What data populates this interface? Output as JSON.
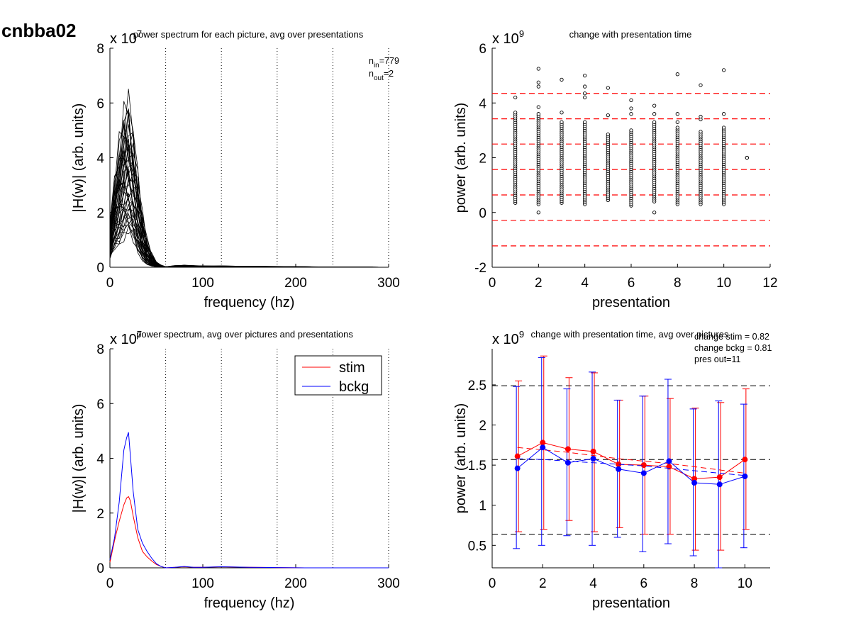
{
  "figure_label": "cnbba02",
  "chart_data": [
    {
      "id": "p1",
      "type": "line",
      "title": "power spectrum for each picture, avg over presentations",
      "xlabel": "frequency (hz)",
      "ylabel": "|H(w)| (arb. units)",
      "xlim": [
        0,
        300
      ],
      "ylim": [
        0,
        8
      ],
      "y_exponent": "x 10^7",
      "exp_base": "x 10",
      "exp_power": "7",
      "xticks": [
        "0",
        "100",
        "200",
        "300"
      ],
      "yticks": [
        "0",
        "2",
        "4",
        "6",
        "8"
      ],
      "vlines_dotted": [
        60,
        120,
        180,
        240,
        300
      ],
      "annotation": {
        "n_in": "n_in=779",
        "n_out": "n_out=2",
        "n_in_label": "n",
        "n_in_sub": "in",
        "n_in_val": "=779",
        "n_out_label": "n",
        "n_out_sub": "out",
        "n_out_val": "=2"
      },
      "x": [
        0,
        5,
        10,
        15,
        20,
        25,
        30,
        35,
        40,
        45,
        50,
        55,
        60,
        70,
        80,
        90,
        100,
        120,
        150,
        180,
        210,
        240,
        270,
        300
      ],
      "series_envelope": {
        "name": "",
        "description": "many individual spectra; values summarized by min/max/mean",
        "min": [
          0.4,
          0.8,
          1.0,
          1.3,
          1.5,
          1.2,
          0.7,
          0.3,
          0.1,
          0.05,
          0.02,
          0.01,
          0.0,
          0.0,
          0.0,
          0.0,
          0.0,
          0.0,
          0.0,
          0.0,
          0.0,
          0.0,
          0.0,
          0.0
        ],
        "mean": [
          0.9,
          1.8,
          2.6,
          3.0,
          3.1,
          2.6,
          1.6,
          0.8,
          0.35,
          0.15,
          0.06,
          0.02,
          0.0,
          0.02,
          0.03,
          0.02,
          0.02,
          0.02,
          0.01,
          0.01,
          0.01,
          0.0,
          0.0,
          0.0
        ],
        "max": [
          1.6,
          3.2,
          4.6,
          5.8,
          6.0,
          5.0,
          3.5,
          2.0,
          1.0,
          0.5,
          0.2,
          0.08,
          0.02,
          0.06,
          0.08,
          0.06,
          0.05,
          0.05,
          0.04,
          0.03,
          0.02,
          0.01,
          0.01,
          0.0
        ]
      }
    },
    {
      "id": "p2",
      "type": "scatter",
      "title": "change with presentation time",
      "xlabel": "presentation",
      "ylabel": "power (arb. units)",
      "xlim": [
        0,
        12
      ],
      "ylim": [
        -2,
        6
      ],
      "y_exponent": "x 10^9",
      "exp_base": "x 10",
      "exp_power": "9",
      "xticks": [
        "0",
        "2",
        "4",
        "6",
        "8",
        "10",
        "12"
      ],
      "yticks": [
        "-2",
        "0",
        "2",
        "4",
        "6"
      ],
      "hlines_dashed_red": [
        4.35,
        3.42,
        2.5,
        1.57,
        0.64,
        -0.29,
        -1.22
      ],
      "points_by_presentation": [
        {
          "x": 1,
          "range": [
            0.35,
            3.65
          ],
          "outliers": [
            4.2
          ]
        },
        {
          "x": 2,
          "range": [
            0.3,
            3.6
          ],
          "outliers": [
            0.0,
            3.85,
            4.6,
            4.75,
            5.25
          ]
        },
        {
          "x": 3,
          "range": [
            0.35,
            3.3
          ],
          "outliers": [
            3.65,
            4.85
          ]
        },
        {
          "x": 4,
          "range": [
            0.3,
            3.3
          ],
          "outliers": [
            4.2,
            4.35,
            4.6,
            5.0
          ]
        },
        {
          "x": 5,
          "range": [
            0.45,
            2.85
          ],
          "outliers": [
            3.55,
            4.55
          ]
        },
        {
          "x": 6,
          "range": [
            0.25,
            3.0
          ],
          "outliers": [
            3.6,
            3.8,
            4.1
          ]
        },
        {
          "x": 7,
          "range": [
            0.4,
            3.3
          ],
          "outliers": [
            0.0,
            3.6,
            3.9
          ]
        },
        {
          "x": 8,
          "range": [
            0.3,
            3.1
          ],
          "outliers": [
            3.3,
            3.6,
            5.05
          ]
        },
        {
          "x": 9,
          "range": [
            0.3,
            2.95
          ],
          "outliers": [
            3.4,
            3.5,
            4.65
          ]
        },
        {
          "x": 10,
          "range": [
            0.3,
            3.1
          ],
          "outliers": [
            3.6,
            5.2
          ]
        },
        {
          "x": 11,
          "range": [
            2.0,
            2.0
          ],
          "outliers": []
        }
      ]
    },
    {
      "id": "p3",
      "type": "line",
      "title": "power spectrum, avg over pictures and presentations",
      "xlabel": "frequency (hz)",
      "ylabel": "|H(w)| (arb. units)",
      "xlim": [
        0,
        300
      ],
      "ylim": [
        0,
        8
      ],
      "y_exponent": "x 10^7",
      "exp_base": "x 10",
      "exp_power": "7",
      "xticks": [
        "0",
        "100",
        "200",
        "300"
      ],
      "yticks": [
        "0",
        "2",
        "4",
        "6",
        "8"
      ],
      "vlines_dotted": [
        60,
        120,
        180,
        240,
        300
      ],
      "legend": {
        "placement": "top-right",
        "entries": [
          {
            "label": "stim",
            "color": "#ff0000"
          },
          {
            "label": "bckg",
            "color": "#0000ff"
          }
        ]
      },
      "x": [
        0,
        5,
        10,
        15,
        18,
        20,
        22,
        25,
        30,
        35,
        40,
        45,
        50,
        55,
        60,
        70,
        80,
        90,
        100,
        120,
        150,
        180,
        210,
        240,
        270,
        300
      ],
      "series": [
        {
          "name": "stim",
          "color": "#ff0000",
          "values": [
            0.2,
            1.0,
            1.7,
            2.3,
            2.55,
            2.6,
            2.45,
            1.9,
            1.1,
            0.6,
            0.4,
            0.25,
            0.12,
            0.05,
            0.0,
            0.02,
            0.04,
            0.02,
            0.02,
            0.04,
            0.02,
            0.01,
            0.0,
            0.0,
            0.0,
            0.0
          ]
        },
        {
          "name": "bckg",
          "color": "#0000ff",
          "values": [
            0.3,
            1.1,
            2.4,
            4.3,
            4.75,
            4.95,
            4.1,
            2.8,
            1.4,
            0.9,
            0.6,
            0.35,
            0.15,
            0.05,
            0.0,
            0.02,
            0.05,
            0.02,
            0.02,
            0.04,
            0.02,
            0.01,
            0.0,
            0.0,
            0.0,
            0.0
          ]
        }
      ]
    },
    {
      "id": "p4",
      "type": "line",
      "title": "change with presentation time, avg over pictures",
      "xlabel": "presentation",
      "ylabel": "power (arb. units)",
      "xlim": [
        0,
        11
      ],
      "ylim": [
        0.22,
        2.95
      ],
      "y_exponent": "x 10^9",
      "exp_base": "x 10",
      "exp_power": "9",
      "xticks": [
        "0",
        "2",
        "4",
        "6",
        "8",
        "10"
      ],
      "yticks": [
        "0.5",
        "1",
        "1.5",
        "2",
        "2.5"
      ],
      "ytick_values": [
        0.5,
        1.0,
        1.5,
        2.0,
        2.5
      ],
      "annotations": [
        "change stim = 0.82",
        "change bckg = 0.81",
        "pres out=11"
      ],
      "hlines_dashed_black": [
        2.49,
        1.57,
        0.64
      ],
      "x": [
        1,
        2,
        3,
        4,
        5,
        6,
        7,
        8,
        9,
        10
      ],
      "series": [
        {
          "name": "stim",
          "color": "#ff0000",
          "values": [
            1.61,
            1.78,
            1.7,
            1.67,
            1.51,
            1.5,
            1.48,
            1.33,
            1.35,
            1.57
          ],
          "err_low": [
            0.67,
            0.7,
            0.81,
            0.67,
            0.72,
            0.64,
            0.64,
            0.44,
            0.44,
            0.7
          ],
          "err_high": [
            2.55,
            2.86,
            2.59,
            2.65,
            2.31,
            2.36,
            2.33,
            2.21,
            2.28,
            2.45
          ],
          "trend": [
            1.72,
            1.69,
            1.66,
            1.62,
            1.58,
            1.55,
            1.52,
            1.48,
            1.44,
            1.4
          ]
        },
        {
          "name": "bckg",
          "color": "#0000ff",
          "values": [
            1.46,
            1.72,
            1.53,
            1.58,
            1.45,
            1.4,
            1.55,
            1.28,
            1.26,
            1.36
          ],
          "err_low": [
            0.46,
            0.5,
            0.62,
            0.5,
            0.6,
            0.42,
            0.52,
            0.37,
            0.22,
            0.47
          ],
          "err_high": [
            2.48,
            2.84,
            2.45,
            2.66,
            2.31,
            2.36,
            2.57,
            2.2,
            2.3,
            2.26
          ],
          "trend": [
            1.58,
            1.57,
            1.55,
            1.53,
            1.51,
            1.49,
            1.46,
            1.43,
            1.4,
            1.37
          ]
        }
      ]
    }
  ]
}
